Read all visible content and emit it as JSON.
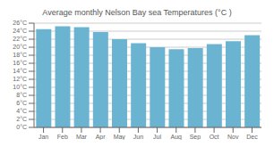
{
  "chart_data": {
    "type": "bar",
    "title": "Average monthly Nelson Bay sea Temperatures (°C )",
    "categories": [
      "Jan",
      "Feb",
      "Mar",
      "Apr",
      "May",
      "Jun",
      "Jul",
      "Aug",
      "Sep",
      "Oct",
      "Nov",
      "Dec"
    ],
    "values": [
      24.5,
      25.2,
      25.0,
      23.8,
      22.0,
      21.0,
      20.0,
      19.5,
      19.8,
      20.8,
      21.5,
      23.0
    ],
    "color": "#6ab4d2",
    "ylim": [
      0,
      26
    ],
    "yticks": [
      {
        "value": 0,
        "label": "0°C"
      },
      {
        "value": 2,
        "label": "2°C"
      },
      {
        "value": 4,
        "label": "4°C"
      },
      {
        "value": 6,
        "label": "6°C"
      },
      {
        "value": 8,
        "label": "8°C"
      },
      {
        "value": 10,
        "label": "10°C"
      },
      {
        "value": 12,
        "label": "12°C"
      },
      {
        "value": 14,
        "label": "14°C"
      },
      {
        "value": 16,
        "label": "16°C"
      },
      {
        "value": 18,
        "label": "18°C"
      },
      {
        "value": 20,
        "label": "20°C"
      },
      {
        "value": 22,
        "label": "22°C"
      },
      {
        "value": 24,
        "label": "24°C"
      },
      {
        "value": 26,
        "label": "26°C"
      }
    ],
    "grid": true
  }
}
